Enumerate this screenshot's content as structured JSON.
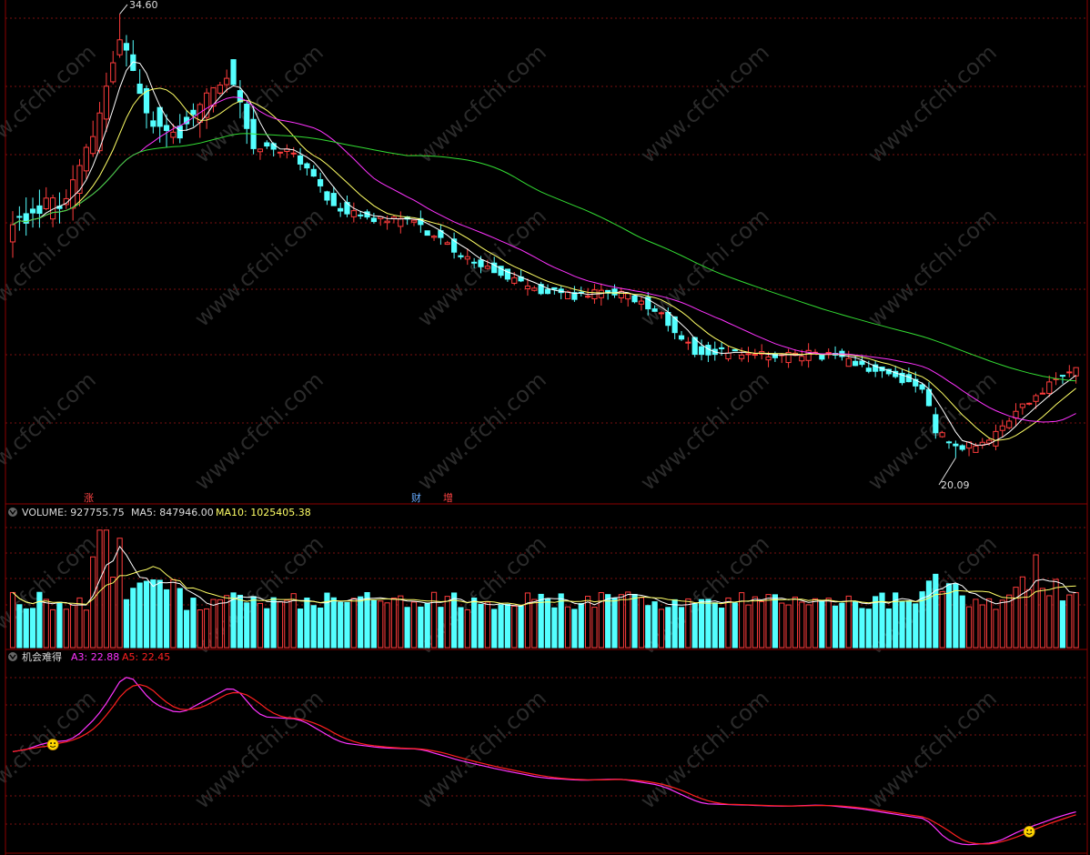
{
  "colors": {
    "background": "#000000",
    "border": "#8b0000",
    "grid": "#7a1010",
    "up": "#ff3c3c",
    "down": "#54ffff",
    "ma_white": "#ffffff",
    "ma_yellow": "#ffff66",
    "ma_magenta": "#ff33ff",
    "ma_green": "#33dd33",
    "indicator_a3": "#ff33ff",
    "indicator_a5": "#ff2020",
    "watermark": "#2a2a2a"
  },
  "watermark": {
    "text": "www.cfchi.com"
  },
  "events": [
    {
      "index": 12,
      "label": "涨",
      "color": "#ff4444"
    },
    {
      "index": 62,
      "label": "财",
      "color": "#66aaff"
    },
    {
      "index": 68,
      "label": "增",
      "color": "#ff4444"
    }
  ],
  "panels": {
    "volume": {
      "icon": "collapse-icon",
      "label": "VOLUME: 927755.75",
      "ma5_label": "MA5: 847946.00",
      "ma10_label": "MA10: 1025405.38"
    },
    "indicator": {
      "icon": "collapse-icon",
      "title": "机会难得",
      "a3_label": "A3: 22.88",
      "a5_label": "A5: 22.45"
    }
  },
  "chart_data": [
    {
      "type": "candlestick",
      "panel": "price",
      "ylim": [
        19,
        35
      ],
      "high_label": "34.60",
      "low_label": "20.09",
      "high_index": 16,
      "low_index": 141,
      "key_points": [
        {
          "index": 0,
          "price": 27.6
        },
        {
          "index": 4,
          "price": 28.3
        },
        {
          "index": 8,
          "price": 28.5
        },
        {
          "index": 12,
          "price": 30.5
        },
        {
          "index": 16,
          "price": 33.8
        },
        {
          "index": 20,
          "price": 31.3
        },
        {
          "index": 24,
          "price": 30.5
        },
        {
          "index": 28,
          "price": 31.6
        },
        {
          "index": 32,
          "price": 32.7
        },
        {
          "index": 36,
          "price": 30.3
        },
        {
          "index": 42,
          "price": 30.1
        },
        {
          "index": 48,
          "price": 28.3
        },
        {
          "index": 54,
          "price": 27.9
        },
        {
          "index": 60,
          "price": 27.8
        },
        {
          "index": 66,
          "price": 26.9
        },
        {
          "index": 72,
          "price": 26.2
        },
        {
          "index": 78,
          "price": 25.6
        },
        {
          "index": 84,
          "price": 25.4
        },
        {
          "index": 90,
          "price": 25.5
        },
        {
          "index": 96,
          "price": 25.0
        },
        {
          "index": 102,
          "price": 23.6
        },
        {
          "index": 108,
          "price": 23.5
        },
        {
          "index": 114,
          "price": 23.4
        },
        {
          "index": 120,
          "price": 23.5
        },
        {
          "index": 126,
          "price": 23.2
        },
        {
          "index": 132,
          "price": 22.7
        },
        {
          "index": 136,
          "price": 22.4
        },
        {
          "index": 138,
          "price": 21.0
        },
        {
          "index": 141,
          "price": 20.4
        },
        {
          "index": 146,
          "price": 20.6
        },
        {
          "index": 150,
          "price": 21.6
        },
        {
          "index": 156,
          "price": 22.7
        },
        {
          "index": 159,
          "price": 23.1
        }
      ],
      "bars": 160,
      "moving_averages": [
        {
          "name": "MA5",
          "color": "#ffffff"
        },
        {
          "name": "MA10",
          "color": "#ffff66"
        },
        {
          "name": "MA20",
          "color": "#ff33ff"
        },
        {
          "name": "MA60",
          "color": "#33dd33"
        }
      ]
    },
    {
      "type": "bar",
      "panel": "volume",
      "series": [
        {
          "name": "VOLUME",
          "value": 927755.75
        },
        {
          "name": "MA5",
          "value": 847946.0
        },
        {
          "name": "MA10",
          "value": 1025405.38
        }
      ]
    },
    {
      "type": "line",
      "panel": "indicator",
      "series": [
        {
          "name": "A3",
          "value": 22.88,
          "color": "#ff33ff"
        },
        {
          "name": "A5",
          "value": 22.45,
          "color": "#ff2020"
        }
      ],
      "signals": [
        {
          "index": 6,
          "icon": "smiley-icon"
        },
        {
          "index": 152,
          "icon": "smiley-icon"
        }
      ]
    }
  ]
}
